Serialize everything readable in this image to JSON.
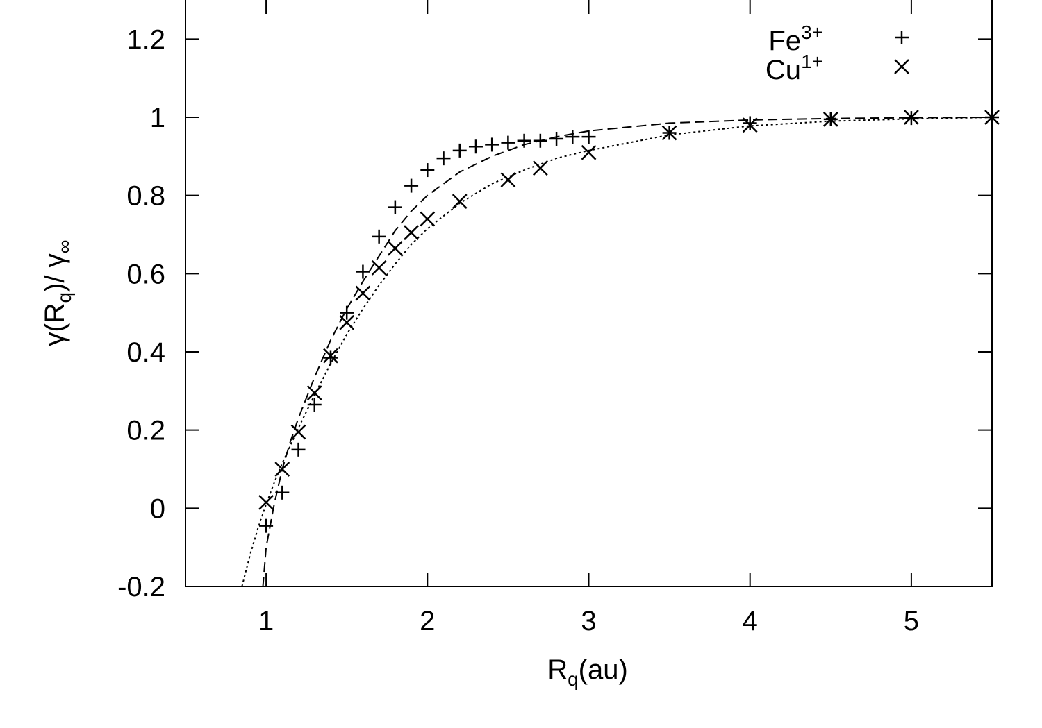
{
  "chart_data": {
    "type": "scatter",
    "xlabel": {
      "main": "R",
      "sub": "q",
      "rest": "(au)"
    },
    "ylabel": {
      "p1": "γ(R",
      "sub1": "q",
      "p2": ")/ γ",
      "sub2": "∞"
    },
    "xlim": [
      0.5,
      5.5
    ],
    "ylim": [
      -0.2,
      1.3
    ],
    "xticks": [
      1,
      2,
      3,
      4,
      5
    ],
    "xtick_labels": [
      "1",
      "2",
      "3",
      "4",
      "5"
    ],
    "yticks": [
      -0.2,
      0,
      0.2,
      0.4,
      0.6,
      0.8,
      1,
      1.2
    ],
    "ytick_labels": [
      "-0.2",
      "0",
      "0.2",
      "0.4",
      "0.6",
      "0.8",
      "1",
      "1.2"
    ],
    "grid": false,
    "legend_position": "top-right",
    "series": [
      {
        "name": "Fe",
        "superscript": "3+",
        "marker": "plus",
        "x": [
          1.0,
          1.1,
          1.2,
          1.3,
          1.4,
          1.5,
          1.6,
          1.7,
          1.8,
          1.9,
          2.0,
          2.1,
          2.2,
          2.3,
          2.4,
          2.5,
          2.6,
          2.7,
          2.8,
          2.9,
          3.0,
          3.5,
          4.0,
          4.5,
          5.0,
          5.5
        ],
        "y": [
          -0.045,
          0.04,
          0.15,
          0.265,
          0.385,
          0.5,
          0.605,
          0.695,
          0.77,
          0.825,
          0.865,
          0.895,
          0.915,
          0.925,
          0.93,
          0.935,
          0.94,
          0.94,
          0.945,
          0.95,
          0.95,
          0.96,
          0.985,
          0.995,
          0.998,
          1.0
        ]
      },
      {
        "name": "Cu",
        "superscript": "1+",
        "marker": "cross",
        "x": [
          1.0,
          1.1,
          1.2,
          1.3,
          1.4,
          1.5,
          1.6,
          1.7,
          1.8,
          1.9,
          2.0,
          2.2,
          2.5,
          2.7,
          3.0,
          3.5,
          4.0,
          4.5,
          5.0,
          5.5
        ],
        "y": [
          0.015,
          0.1,
          0.195,
          0.295,
          0.39,
          0.475,
          0.55,
          0.615,
          0.665,
          0.705,
          0.74,
          0.785,
          0.84,
          0.87,
          0.91,
          0.96,
          0.98,
          0.995,
          1.0,
          1.0
        ]
      }
    ],
    "fit_curves": [
      {
        "style": "dashed",
        "x": [
          0.98,
          1.0,
          1.05,
          1.1,
          1.15,
          1.2,
          1.3,
          1.4,
          1.5,
          1.6,
          1.7,
          1.8,
          1.9,
          2.0,
          2.2,
          2.4,
          2.6,
          2.8,
          3.0,
          3.5,
          4.0,
          4.5,
          5.0,
          5.5
        ],
        "y": [
          -0.2,
          -0.1,
          0.01,
          0.1,
          0.17,
          0.23,
          0.335,
          0.43,
          0.51,
          0.58,
          0.645,
          0.71,
          0.76,
          0.8,
          0.86,
          0.9,
          0.93,
          0.95,
          0.965,
          0.985,
          0.993,
          0.997,
          0.999,
          1.0
        ]
      },
      {
        "style": "dotted",
        "x": [
          0.85,
          0.9,
          0.95,
          1.0,
          1.05,
          1.1,
          1.2,
          1.3,
          1.4,
          1.5,
          1.6,
          1.7,
          1.8,
          1.9,
          2.0,
          2.2,
          2.4,
          2.6,
          2.8,
          3.0,
          3.5,
          4.0,
          4.5,
          5.0,
          5.5
        ],
        "y": [
          -0.2,
          -0.12,
          -0.05,
          0.01,
          0.065,
          0.115,
          0.205,
          0.29,
          0.37,
          0.445,
          0.51,
          0.57,
          0.625,
          0.675,
          0.715,
          0.78,
          0.83,
          0.865,
          0.895,
          0.915,
          0.955,
          0.978,
          0.99,
          0.996,
          1.0
        ]
      }
    ]
  }
}
